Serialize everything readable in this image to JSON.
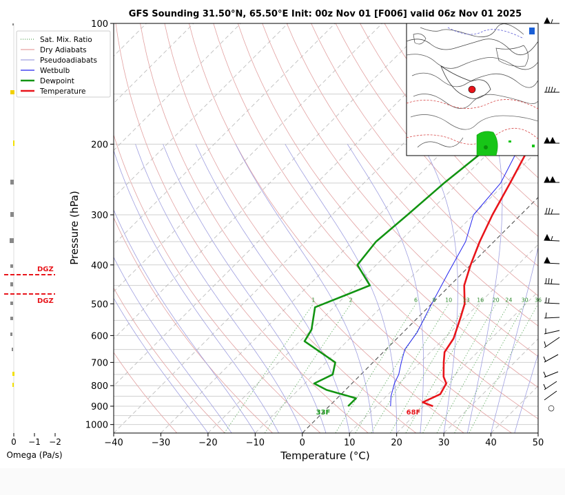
{
  "chart_data": {
    "type": "line",
    "title": "GFS Sounding 31.50°N, 65.50°E Init: 00z Nov 01 [F006] valid 06z Nov 01 2025",
    "xlabel": "Temperature (°C)",
    "ylabel": "Pressure (hPa)",
    "xlim": [
      -40,
      50
    ],
    "ylim": [
      1050,
      100
    ],
    "x_ticks": [
      "−40",
      "−30",
      "−20",
      "−10",
      "0",
      "10",
      "20",
      "30",
      "40",
      "50"
    ],
    "y_ticks": [
      "100",
      "200",
      "300",
      "400",
      "500",
      "600",
      "700",
      "800",
      "900",
      "1000"
    ],
    "legend": {
      "placement": "top-left",
      "entries": [
        "Sat. Mix. Ratio",
        "Dry Adiabats",
        "Pseudoadiabats",
        "Wetbulb",
        "Dewpoint",
        "Temperature"
      ]
    },
    "series": [
      {
        "name": "Temperature",
        "color": "#e8141a",
        "points": [
          [
            22,
            900
          ],
          [
            19,
            880
          ],
          [
            21,
            840
          ],
          [
            20,
            790
          ],
          [
            18,
            760
          ],
          [
            15,
            700
          ],
          [
            13,
            660
          ],
          [
            12,
            610
          ],
          [
            9,
            540
          ],
          [
            7,
            500
          ],
          [
            3,
            450
          ],
          [
            0,
            400
          ],
          [
            -3,
            350
          ],
          [
            -6,
            300
          ],
          [
            -9,
            250
          ],
          [
            -12,
            210
          ],
          [
            -16,
            180
          ],
          [
            -18,
            145
          ],
          [
            -18,
            120
          ],
          [
            -19,
            100
          ]
        ]
      },
      {
        "name": "Dewpoint",
        "color": "#129412",
        "points": [
          [
            4,
            900
          ],
          [
            4,
            860
          ],
          [
            -4,
            820
          ],
          [
            -8,
            790
          ],
          [
            -6,
            750
          ],
          [
            -8,
            700
          ],
          [
            -19,
            620
          ],
          [
            -20,
            580
          ],
          [
            -24,
            510
          ],
          [
            -17,
            450
          ],
          [
            -24,
            400
          ],
          [
            -25,
            350
          ],
          [
            -24,
            300
          ],
          [
            -23,
            250
          ],
          [
            -21,
            200
          ],
          [
            -23,
            150
          ],
          [
            -22,
            120
          ],
          [
            -20,
            100
          ]
        ]
      },
      {
        "name": "Wetbulb",
        "color": "#2222ee",
        "points": [
          [
            13,
            900
          ],
          [
            11,
            850
          ],
          [
            9,
            790
          ],
          [
            8,
            750
          ],
          [
            6,
            700
          ],
          [
            4,
            650
          ],
          [
            3,
            590
          ],
          [
            0,
            500
          ],
          [
            -3,
            420
          ],
          [
            -6,
            350
          ],
          [
            -10,
            300
          ],
          [
            -11,
            250
          ],
          [
            -15,
            200
          ],
          [
            -16,
            180
          ]
        ]
      }
    ],
    "mixing_ratio_labels": [
      "1",
      "2",
      "6",
      "8",
      "10",
      "13",
      "16",
      "20",
      "24",
      "30",
      "36"
    ],
    "surface_labels": {
      "temperature": "33F",
      "temperature_hot": "68F"
    },
    "omega_panel": {
      "xlabel": "Omega (Pa/s)",
      "ticks": [
        "0",
        "−1",
        "−2"
      ],
      "dgz_label": "DGZ"
    },
    "calm_symbol": "○"
  }
}
